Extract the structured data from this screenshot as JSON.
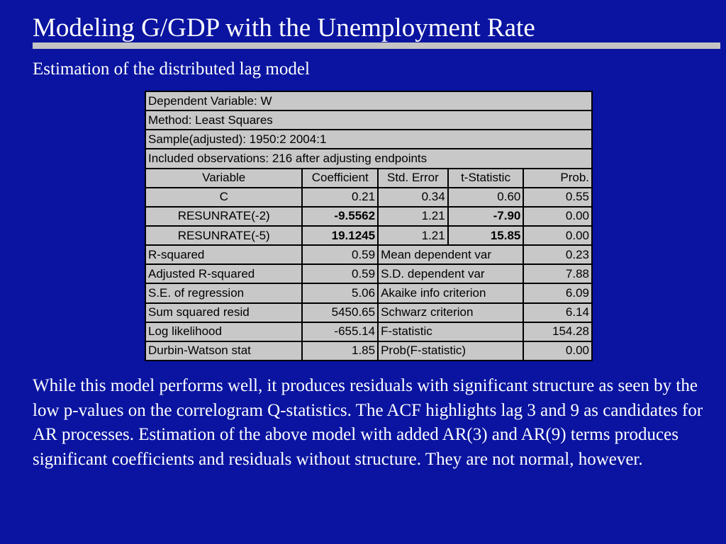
{
  "title": "Modeling G/GDP with the Unemployment Rate",
  "subtitle": "Estimation of the distributed lag model",
  "regression": {
    "dependent_variable": "Dependent Variable: W",
    "method": "Method: Least Squares",
    "sample": "Sample(adjusted): 1950:2 2004:1",
    "observations": "Included observations: 216 after adjusting endpoints",
    "headers": [
      "Variable",
      "Coefficient",
      "Std. Error",
      "t-Statistic",
      "Prob."
    ],
    "rows": [
      [
        "C",
        "0.21",
        "0.34",
        "0.60",
        "0.55"
      ],
      [
        "RESUNRATE(-2)",
        "-9.5562",
        "1.21",
        "-7.90",
        "0.00"
      ],
      [
        "RESUNRATE(-5)",
        "19.1245",
        "1.21",
        "15.85",
        "0.00"
      ]
    ],
    "stats": [
      [
        "R-squared",
        "0.59",
        "Mean dependent var",
        "0.23"
      ],
      [
        "Adjusted R-squared",
        "0.59",
        "S.D. dependent var",
        "7.88"
      ],
      [
        "S.E. of regression",
        "5.06",
        "Akaike info criterion",
        "6.09"
      ],
      [
        "Sum squared resid",
        "5450.65",
        "Schwarz criterion",
        "6.14"
      ],
      [
        "Log likelihood",
        "-655.14",
        "F-statistic",
        "154.28"
      ],
      [
        "Durbin-Watson stat",
        "1.85",
        "Prob(F-statistic)",
        "0.00"
      ]
    ]
  },
  "body": "While this model performs well, it produces residuals with significant structure as seen by the low p-values on the correlogram Q-statistics. The ACF highlights lag 3 and 9 as candidates for AR processes. Estimation of the above model with added AR(3) and AR(9) terms produces significant coefficients and residuals without structure. They are not normal, however."
}
